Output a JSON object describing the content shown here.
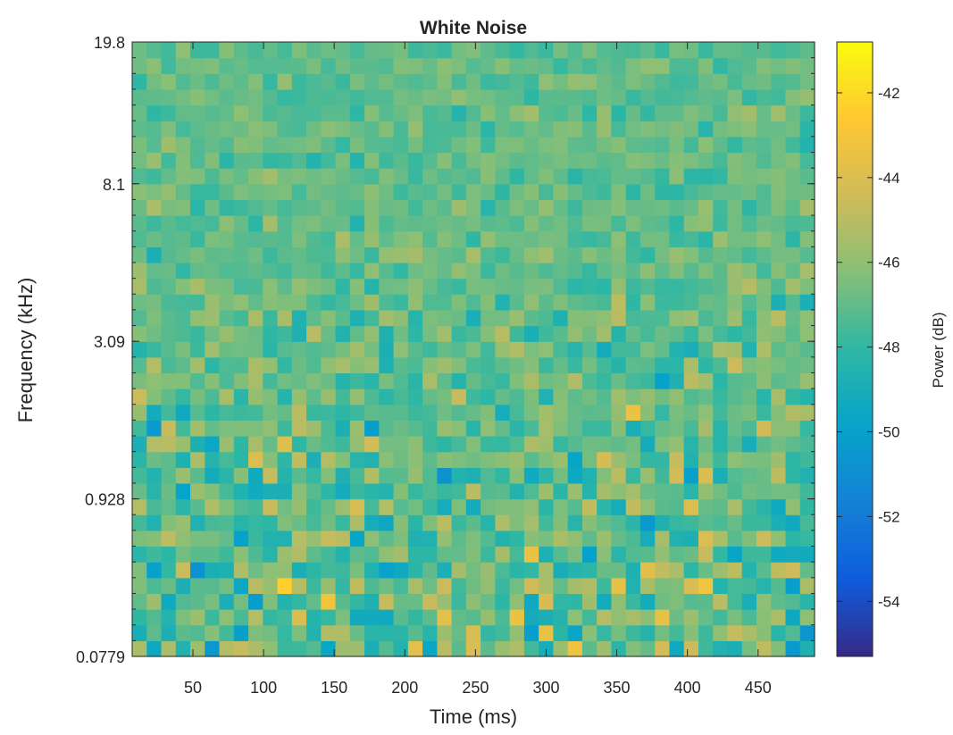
{
  "chart_data": {
    "type": "heatmap",
    "title": "White Noise",
    "xlabel": "Time (ms)",
    "ylabel": "Frequency (kHz)",
    "xlim": [
      7,
      490
    ],
    "x_ticks": [
      50,
      100,
      150,
      200,
      250,
      300,
      350,
      400,
      450
    ],
    "y_ticks": [
      "0.0779",
      "0.928",
      "3.09",
      "8.1",
      "19.8"
    ],
    "grid": false,
    "n_time_bins": 47,
    "n_freq_bins": 39,
    "colormap": "parula",
    "colorbar": {
      "label": "Power (dB)",
      "ticks": [
        -42,
        -44,
        -46,
        -48,
        -50,
        -52,
        -54
      ],
      "range": [
        -55.3,
        -40.8
      ]
    },
    "colors": {
      "axes_edge": "#262626",
      "background": "#ffffff",
      "parula": [
        "#352a87",
        "#0f5cdd",
        "#1481d6",
        "#06a4ca",
        "#2eb7a4",
        "#87bf77",
        "#d1bb59",
        "#fec832",
        "#f9fb0e"
      ]
    }
  }
}
